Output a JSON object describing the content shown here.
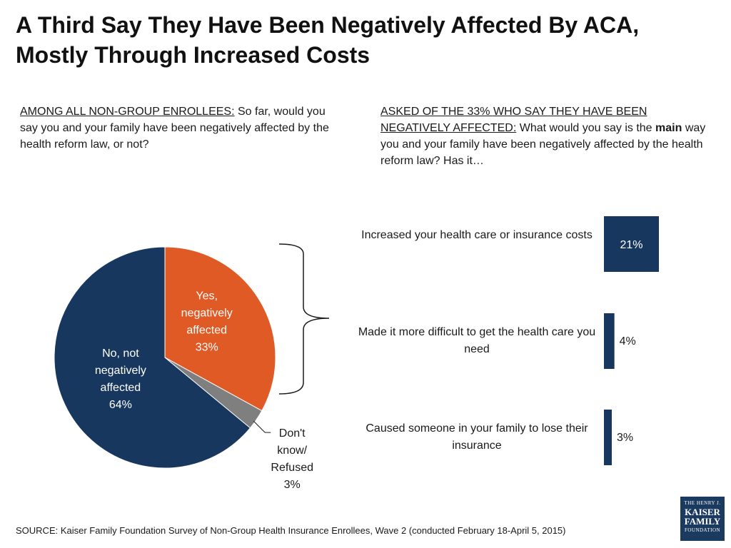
{
  "title": "A Third Say They Have Been Negatively Affected By ACA, Mostly Through Increased Costs",
  "left_question": {
    "lead": "AMONG ALL NON-GROUP ENROLLEES:",
    "text": " So far, would you say you and your family have been negatively affected by the health reform law, or not?"
  },
  "right_question": {
    "lead": "ASKED OF THE 33% WHO SAY THEY HAVE BEEN NEGATIVELY AFFECTED:",
    "text_before": " What would you say is the ",
    "emphasis": "main",
    "text_after": " way you and your family have been negatively affected by the health reform law? Has it…"
  },
  "chart_data": [
    {
      "type": "pie",
      "slices": [
        {
          "label_lines": [
            "Yes,",
            "negatively",
            "affected",
            "33%"
          ],
          "value": 33,
          "color": "#e05a26"
        },
        {
          "label_lines": [
            "Don't",
            "know/",
            "Refused",
            "3%"
          ],
          "value": 3,
          "color": "#7f7f7f"
        },
        {
          "label_lines": [
            "No, not",
            "negatively",
            "affected",
            "64%"
          ],
          "value": 64,
          "color": "#17375e"
        }
      ]
    },
    {
      "type": "bar",
      "orientation": "horizontal",
      "categories": [
        "Increased your health care or insurance costs",
        "Made it more difficult to get the health care you need",
        "Caused someone in your family to lose their insurance"
      ],
      "values": [
        21,
        4,
        3
      ],
      "value_labels": [
        "21%",
        "4%",
        "3%"
      ],
      "color": "#17375e"
    }
  ],
  "source": "SOURCE: Kaiser Family Foundation Survey of Non-Group Health Insurance Enrollees, Wave 2 (conducted February 18-April 5, 2015)",
  "logo": {
    "line1": "THE HENRY J.",
    "line2": "KAISER",
    "line3": "FAMILY",
    "line4": "FOUNDATION"
  }
}
